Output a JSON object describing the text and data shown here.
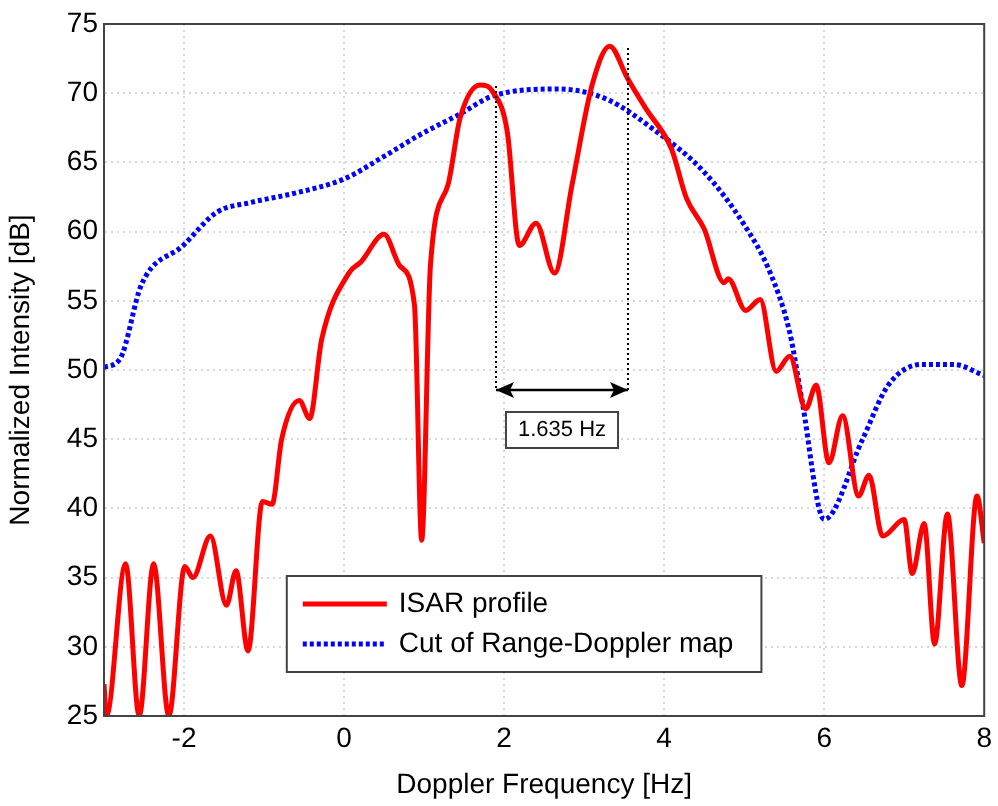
{
  "chart_data": {
    "type": "line",
    "xlabel": "Doppler Frequency [Hz]",
    "ylabel": "Normalized Intensity [dB]",
    "xlim": [
      -3,
      8
    ],
    "xticks": [
      -2,
      0,
      2,
      4,
      6,
      8
    ],
    "ylim": [
      25,
      75
    ],
    "yticks": [
      25,
      30,
      35,
      40,
      45,
      50,
      55,
      60,
      65,
      70,
      75
    ],
    "grid": true,
    "legend": "bottom",
    "marker": "none",
    "annotations": [
      "1.635 Hz"
    ],
    "series": [
      {
        "name": "ISAR profile",
        "color": "#ff0000",
        "line_style": "solid",
        "x": [
          -3,
          -2.97,
          -2.73,
          -2.56,
          -2.38,
          -2.19,
          -1.99,
          -1.89,
          -1.67,
          -1.47,
          -1.35,
          -1.2,
          -1.02,
          -0.9,
          -0.78,
          -0.56,
          -0.43,
          -0.28,
          0.06,
          0.21,
          0.5,
          0.7,
          0.88,
          0.97,
          1.08,
          1.3,
          1.45,
          1.7,
          1.86,
          2.04,
          2.19,
          2.4,
          2.63,
          2.85,
          3.1,
          3.32,
          3.54,
          3.77,
          4.09,
          4.28,
          4.5,
          4.75,
          4.8,
          5.02,
          5.2,
          5.4,
          5.57,
          5.77,
          5.9,
          6.06,
          6.23,
          6.43,
          6.56,
          6.73,
          7.0,
          7.1,
          7.25,
          7.38,
          7.54,
          7.72,
          7.91,
          8
        ],
        "values": [
          27.3,
          25,
          36,
          25,
          36,
          25,
          35.8,
          35,
          38,
          33,
          35.5,
          29.7,
          40.5,
          40.3,
          45,
          47.8,
          46.5,
          52.2,
          57,
          57.8,
          59.8,
          57.5,
          54.7,
          37.7,
          57.6,
          63.4,
          68.2,
          70.6,
          70.1,
          67.2,
          59,
          60.6,
          57,
          63.4,
          70.6,
          73.4,
          71.1,
          68.9,
          66,
          62.4,
          60.2,
          56.3,
          56.6,
          54.3,
          55.1,
          49.9,
          51,
          47.2,
          48.9,
          43.3,
          46.7,
          40.9,
          42.4,
          38,
          39.2,
          35.3,
          38.9,
          30.2,
          39.6,
          27.2,
          40.9,
          37.5
        ]
      },
      {
        "name": "Cut of Range-Doppler map",
        "color": "#0000ff",
        "line_style": "dotted",
        "x": [
          -3,
          -2.8,
          -2.53,
          -2.01,
          -1.59,
          -1.17,
          -0.6,
          0,
          0.46,
          0.95,
          1.45,
          1.86,
          2.68,
          3.27,
          3.91,
          4.5,
          5.0,
          5.32,
          5.57,
          5.72,
          6.0,
          6.48,
          6.8,
          7.22,
          7.62,
          8
        ],
        "values": [
          50.2,
          50.8,
          56.2,
          59,
          61.4,
          62.1,
          62.8,
          63.8,
          65.3,
          67,
          68.5,
          69.8,
          70.3,
          69.6,
          67.2,
          64.3,
          60.5,
          57.1,
          52.7,
          47.9,
          39.2,
          45,
          48.9,
          50.4,
          50.4,
          49.6
        ]
      }
    ]
  }
}
